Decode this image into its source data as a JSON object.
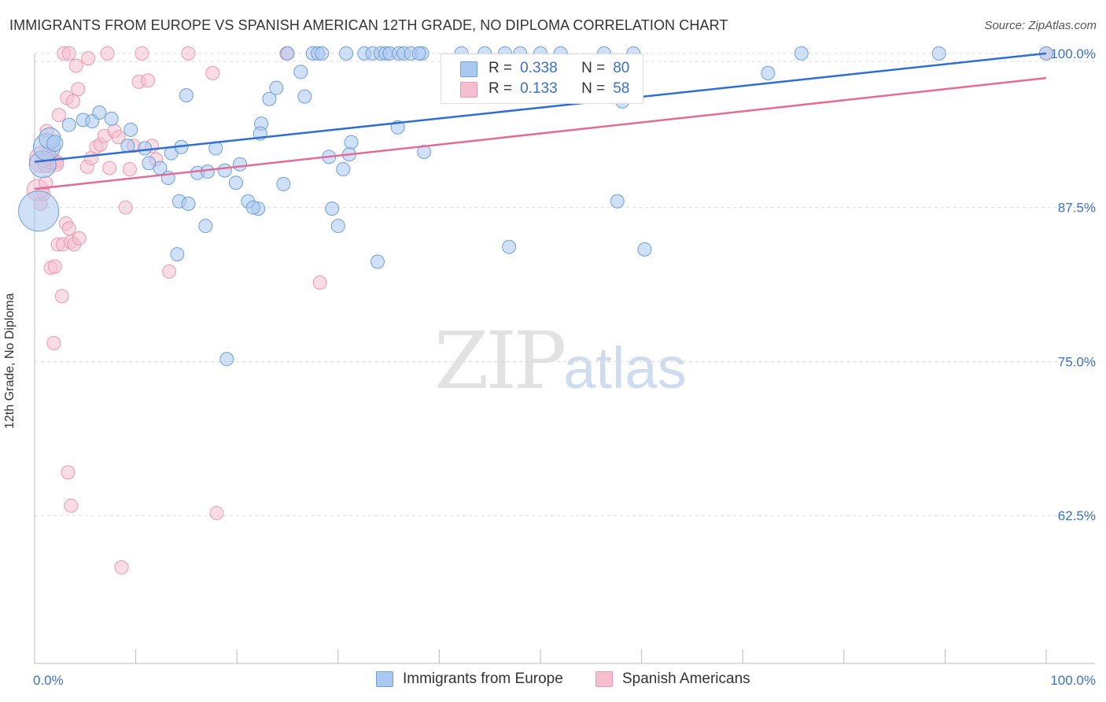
{
  "header": {
    "title": "IMMIGRANTS FROM EUROPE VS SPANISH AMERICAN 12TH GRADE, NO DIPLOMA CORRELATION CHART",
    "source": "Source: ZipAtlas.com"
  },
  "watermark": {
    "zip": "ZIP",
    "atlas": "atlas"
  },
  "stats": {
    "r_label": "R =",
    "n_label": "N =",
    "rows": [
      {
        "r": "0.338",
        "n": "80"
      },
      {
        "r": "0.133",
        "n": "58"
      }
    ]
  },
  "colors": {
    "blue_fill": "#aac8f0",
    "blue_stroke": "#6f9fd8",
    "blue_line": "#2f6fcf",
    "pink_fill": "#f6bfd0",
    "pink_stroke": "#e89ab3",
    "pink_line": "#e36c97",
    "tick_text": "#3b70c8",
    "grid": "#dcdcdc"
  },
  "chart_data": {
    "type": "scatter",
    "title": "IMMIGRANTS FROM EUROPE VS SPANISH AMERICAN 12TH GRADE, NO DIPLOMA CORRELATION CHART",
    "xlabel": "",
    "ylabel": "12th Grade, No Diploma",
    "xlim": [
      0,
      100
    ],
    "ylim": [
      50.5,
      100.5
    ],
    "x_tick_labels": [
      "0.0%",
      "100.0%"
    ],
    "y_ticks": [
      62.5,
      75.0,
      87.5,
      100.0
    ],
    "y_tick_labels": [
      "62.5%",
      "75.0%",
      "87.5%",
      "100.0%"
    ],
    "grid": true,
    "legend_position": "bottom",
    "series": [
      {
        "name": "Immigrants from Europe",
        "color": "#aac8f0",
        "trend": {
          "x": [
            0,
            100
          ],
          "y": [
            91.2,
            100.0
          ]
        },
        "points": [
          [
            0.4,
            87.2,
            3
          ],
          [
            0.8,
            91.0,
            2
          ],
          [
            1.2,
            92.4,
            2
          ],
          [
            1.5,
            93.1,
            1.6
          ],
          [
            2.0,
            92.7,
            1.2
          ],
          [
            3.4,
            94.2,
            1
          ],
          [
            4.8,
            94.6,
            1
          ],
          [
            5.7,
            94.5,
            1
          ],
          [
            6.4,
            95.2,
            1
          ],
          [
            7.6,
            94.7,
            1
          ],
          [
            9.5,
            93.8,
            1
          ],
          [
            9.2,
            92.5,
            1
          ],
          [
            10.9,
            92.3,
            1
          ],
          [
            12.4,
            90.7,
            1
          ],
          [
            13.5,
            91.9,
            1
          ],
          [
            11.3,
            91.1,
            1
          ],
          [
            14.5,
            92.4,
            1
          ],
          [
            13.2,
            89.9,
            1
          ],
          [
            14.3,
            88.0,
            1
          ],
          [
            15.2,
            87.8,
            1
          ],
          [
            15.0,
            96.6,
            1
          ],
          [
            14.1,
            83.7,
            1
          ],
          [
            16.1,
            90.3,
            1
          ],
          [
            17.1,
            90.4,
            1
          ],
          [
            17.9,
            92.3,
            1
          ],
          [
            16.9,
            86.0,
            1
          ],
          [
            18.8,
            90.5,
            1
          ],
          [
            19.9,
            89.5,
            1
          ],
          [
            20.3,
            91.0,
            1
          ],
          [
            21.1,
            88.0,
            1
          ],
          [
            22.1,
            87.4,
            1
          ],
          [
            21.6,
            87.5,
            1
          ],
          [
            22.4,
            94.3,
            1
          ],
          [
            22.3,
            93.5,
            1
          ],
          [
            23.2,
            96.3,
            1
          ],
          [
            23.9,
            97.2,
            1
          ],
          [
            24.6,
            89.4,
            1
          ],
          [
            25.0,
            100.0,
            1
          ],
          [
            26.3,
            98.5,
            1
          ],
          [
            26.7,
            96.5,
            1
          ],
          [
            27.5,
            100.0,
            1
          ],
          [
            28.0,
            100.0,
            1
          ],
          [
            28.4,
            100.0,
            1
          ],
          [
            29.1,
            91.6,
            1
          ],
          [
            29.4,
            87.4,
            1
          ],
          [
            30.0,
            86.0,
            1
          ],
          [
            30.5,
            90.6,
            1
          ],
          [
            31.3,
            92.8,
            1
          ],
          [
            31.1,
            91.8,
            1
          ],
          [
            32.6,
            100.0,
            1
          ],
          [
            33.4,
            100.0,
            1
          ],
          [
            34.2,
            100.0,
            1
          ],
          [
            34.7,
            100.0,
            1
          ],
          [
            35.1,
            100.0,
            1
          ],
          [
            36.0,
            100.0,
            1
          ],
          [
            36.5,
            100.0,
            1
          ],
          [
            37.2,
            100.0,
            1
          ],
          [
            38.3,
            100.0,
            1
          ],
          [
            38.0,
            100.0,
            1
          ],
          [
            33.9,
            83.1,
            1
          ],
          [
            35.9,
            94.0,
            1
          ],
          [
            38.5,
            92.0,
            1
          ],
          [
            42.2,
            100.0,
            1
          ],
          [
            44.5,
            100.0,
            1
          ],
          [
            46.5,
            100.0,
            1
          ],
          [
            48.0,
            100.0,
            1
          ],
          [
            50.0,
            100.0,
            1
          ],
          [
            52.0,
            100.0,
            1
          ],
          [
            56.3,
            100.0,
            1
          ],
          [
            59.2,
            100.0,
            1
          ],
          [
            58.1,
            96.1,
            1
          ],
          [
            57.6,
            88.0,
            1
          ],
          [
            30.8,
            100.0,
            1
          ],
          [
            60.3,
            84.1,
            1
          ],
          [
            46.9,
            84.3,
            1
          ],
          [
            72.5,
            98.4,
            1
          ],
          [
            75.8,
            100.0,
            1
          ],
          [
            89.4,
            100.0,
            1
          ],
          [
            100.0,
            100.0,
            1
          ],
          [
            19.0,
            75.2,
            1
          ]
        ]
      },
      {
        "name": "Spanish Americans",
        "color": "#f6bfd0",
        "trend": {
          "x": [
            0,
            100
          ],
          "y": [
            89.0,
            98.0
          ]
        },
        "points": [
          [
            0.3,
            88.9,
            1.6
          ],
          [
            0.8,
            91.4,
            2
          ],
          [
            1.3,
            91.2,
            1.6
          ],
          [
            1.7,
            91.3,
            1.3
          ],
          [
            2.2,
            91.2,
            1
          ],
          [
            0.6,
            87.8,
            1
          ],
          [
            0.9,
            88.6,
            1
          ],
          [
            1.1,
            89.5,
            1
          ],
          [
            1.6,
            82.6,
            1
          ],
          [
            2.0,
            82.7,
            1
          ],
          [
            2.3,
            84.5,
            1
          ],
          [
            2.8,
            84.5,
            1
          ],
          [
            3.1,
            86.2,
            1
          ],
          [
            3.4,
            85.8,
            1
          ],
          [
            3.6,
            84.7,
            1
          ],
          [
            3.9,
            84.5,
            1
          ],
          [
            4.4,
            85.0,
            1
          ],
          [
            2.7,
            80.3,
            1
          ],
          [
            1.9,
            76.5,
            1
          ],
          [
            3.3,
            66.0,
            1
          ],
          [
            3.6,
            63.3,
            1
          ],
          [
            5.2,
            90.8,
            1
          ],
          [
            5.6,
            91.5,
            1
          ],
          [
            6.1,
            92.4,
            1
          ],
          [
            6.5,
            92.6,
            1
          ],
          [
            6.9,
            93.3,
            1
          ],
          [
            7.4,
            90.7,
            1
          ],
          [
            7.9,
            93.7,
            1
          ],
          [
            8.3,
            93.2,
            1
          ],
          [
            8.6,
            58.3,
            1
          ],
          [
            9.0,
            87.5,
            1
          ],
          [
            9.4,
            90.6,
            1
          ],
          [
            9.8,
            92.5,
            1
          ],
          [
            10.3,
            97.7,
            1
          ],
          [
            10.6,
            100.0,
            1
          ],
          [
            11.2,
            97.8,
            1
          ],
          [
            11.6,
            92.5,
            1
          ],
          [
            12.0,
            91.4,
            1
          ],
          [
            13.3,
            82.3,
            1
          ],
          [
            15.2,
            100.0,
            1
          ],
          [
            17.6,
            98.4,
            1
          ],
          [
            18.0,
            62.7,
            1
          ],
          [
            24.9,
            100.0,
            1
          ],
          [
            28.2,
            81.4,
            1
          ],
          [
            2.9,
            100.0,
            1
          ],
          [
            3.4,
            100.0,
            1
          ],
          [
            4.1,
            99.0,
            1
          ],
          [
            5.3,
            99.6,
            1
          ],
          [
            7.2,
            100.0,
            1
          ],
          [
            3.2,
            96.4,
            1
          ],
          [
            3.8,
            96.1,
            1
          ],
          [
            2.4,
            95.0,
            1
          ],
          [
            4.3,
            97.1,
            1
          ],
          [
            1.2,
            93.7,
            1
          ],
          [
            1.4,
            92.0,
            1
          ],
          [
            2.2,
            91.0,
            1
          ],
          [
            0.9,
            91.3,
            1
          ],
          [
            100.0,
            100.0,
            1
          ]
        ]
      }
    ]
  }
}
